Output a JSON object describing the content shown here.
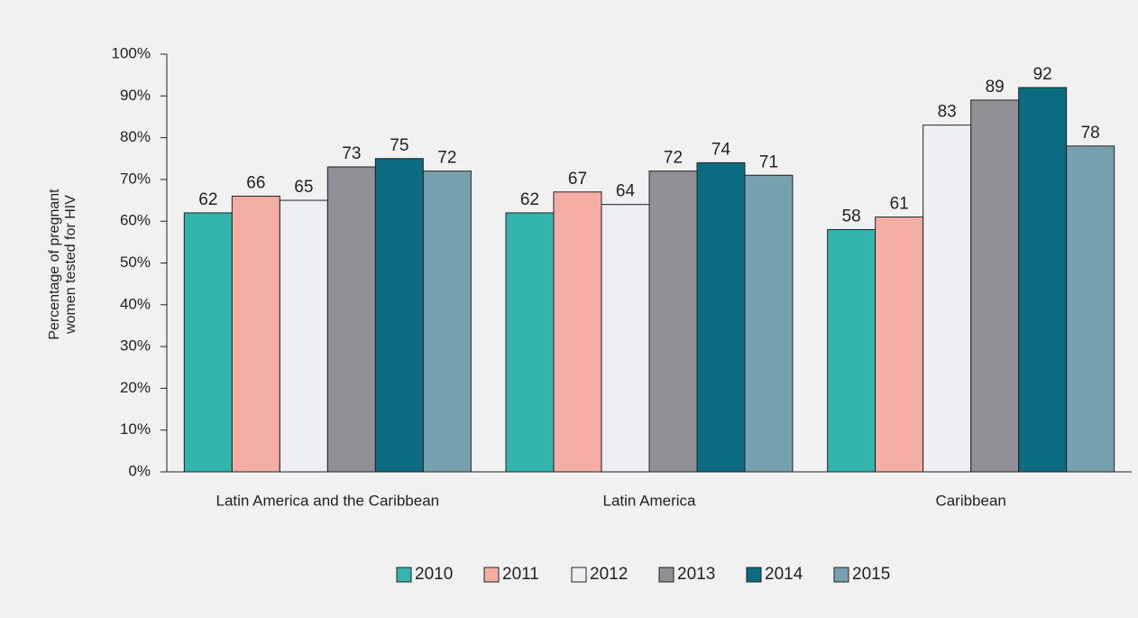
{
  "chart_data": {
    "type": "bar",
    "ylabel": "Percentage of pregnant women tested for HIV",
    "categories": [
      "Latin America and the Caribbean",
      "Latin America",
      "Caribbean"
    ],
    "series": [
      {
        "name": "2010",
        "color": "#33b5ad",
        "values": [
          62,
          62,
          58
        ]
      },
      {
        "name": "2011",
        "color": "#f4aea3",
        "values": [
          66,
          67,
          61
        ]
      },
      {
        "name": "2012",
        "color": "#eeeef5",
        "values": [
          65,
          64,
          83
        ]
      },
      {
        "name": "2013",
        "color": "#909096",
        "values": [
          73,
          72,
          89
        ]
      },
      {
        "name": "2014",
        "color": "#0b6b80",
        "values": [
          75,
          74,
          92
        ]
      },
      {
        "name": "2015",
        "color": "#78a1b0",
        "values": [
          72,
          71,
          78
        ]
      }
    ],
    "ylim": [
      0,
      100
    ],
    "yticks": [
      {
        "value": 0,
        "label": "0%"
      },
      {
        "value": 10,
        "label": "10%"
      },
      {
        "value": 20,
        "label": "20%"
      },
      {
        "value": 30,
        "label": "30%"
      },
      {
        "value": 40,
        "label": "40%"
      },
      {
        "value": 50,
        "label": "50%"
      },
      {
        "value": 60,
        "label": "60%"
      },
      {
        "value": 70,
        "label": "70%"
      },
      {
        "value": 80,
        "label": "80%"
      },
      {
        "value": 90,
        "label": "90%"
      },
      {
        "value": 100,
        "label": "100%"
      }
    ],
    "legend": "bottom"
  }
}
